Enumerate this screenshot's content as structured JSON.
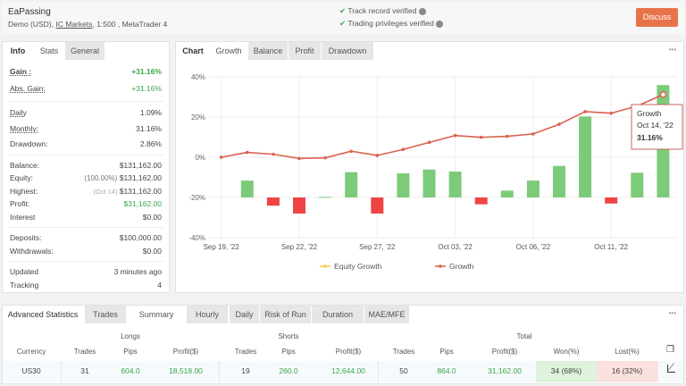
{
  "header": {
    "title": "EaPassing",
    "account": "Demo (USD),",
    "broker": "IC Markets",
    "details": ", 1:500 , MetaTrader 4",
    "verified": [
      "Track record verified",
      "Trading privileges verified"
    ],
    "discuss_label": "Discuss",
    "accent": "#e8734a"
  },
  "info_panel": {
    "tabs": [
      "Info",
      "Stats",
      "General"
    ],
    "gain": {
      "label": "Gain :",
      "value": "+31.16%"
    },
    "abs_gain": {
      "label": "Abs. Gain:",
      "value": "+31.16%"
    },
    "daily": {
      "label": "Daily",
      "value": "1.09%"
    },
    "monthly": {
      "label": "Monthly:",
      "value": "31.16%"
    },
    "drawdown": {
      "label": "Drawdown:",
      "value": "2.86%"
    },
    "balance": {
      "label": "Balance:",
      "value": "$131,162.00"
    },
    "equity": {
      "label": "Equity:",
      "note": "(100.00%)",
      "value": "$131,162.00"
    },
    "highest": {
      "label": "Highest:",
      "note": "(Oct 14)",
      "value": "$131,162.00"
    },
    "profit": {
      "label": "Profit:",
      "value": "$31,162.00"
    },
    "interest": {
      "label": "Interest",
      "value": "$0.00"
    },
    "deposits": {
      "label": "Deposits:",
      "value": "$100,000.00"
    },
    "withdrawals": {
      "label": "Withdrawals:",
      "value": "$0.00"
    },
    "updated": {
      "label": "Updated",
      "value": "3 minutes ago"
    },
    "tracking": {
      "label": "Tracking",
      "value": "4"
    }
  },
  "chart_panel": {
    "tabs": [
      "Chart",
      "Growth",
      "Balance",
      "Profit",
      "Drawdown"
    ],
    "menu": "•••"
  },
  "chart_data": {
    "type": "line+bar",
    "ylim": [
      -40,
      40
    ],
    "yticks": [
      "40%",
      "20%",
      "0%",
      "-20%",
      "-40%"
    ],
    "ytick_values": [
      40,
      20,
      0,
      -20,
      -40
    ],
    "xticks": [
      {
        "index": 0,
        "label": "Sep 19, '22"
      },
      {
        "index": 3,
        "label": "Sep 22, '22"
      },
      {
        "index": 6,
        "label": "Sep 27, '22"
      },
      {
        "index": 9,
        "label": "Oct 03, '22"
      },
      {
        "index": 12,
        "label": "Oct 06, '22"
      },
      {
        "index": 15,
        "label": "Oct 11, '22"
      }
    ],
    "growth": [
      0,
      2.4,
      1.5,
      -0.6,
      -0.3,
      3.0,
      0.9,
      3.9,
      7.4,
      10.8,
      9.9,
      10.4,
      11.6,
      16.4,
      22.7,
      21.9,
      25.5,
      31.16
    ],
    "bar_baseline": -20,
    "bars": [
      null,
      8.4,
      -4.1,
      -8,
      0.3,
      12.6,
      -8,
      12,
      13.9,
      12.9,
      -3.4,
      3.4,
      8.4,
      15.7,
      40.3,
      -3,
      12.3,
      55.9
    ],
    "line_color": "#d9624e",
    "bar_up_color": "#7dcb7a",
    "bar_down_color": "#ef4444",
    "legend": [
      "Equity Growth",
      "Growth"
    ],
    "legend_position": "bottom",
    "tooltip": {
      "series": "Growth",
      "date": "Oct 14, '22",
      "value": "31.16%"
    }
  },
  "advanced": {
    "tabs": [
      "Advanced Statistics",
      "Trades",
      "Summary",
      "Hourly",
      "Daily",
      "Risk of Run",
      "Duration",
      "MAE/MFE"
    ],
    "menu": "•••",
    "groups": [
      "Longs",
      "Shorts",
      "Total"
    ],
    "columns": [
      "Currency",
      "Trades",
      "Pips",
      "Profit($)",
      "Trades",
      "Pips",
      "Profit($)",
      "Trades",
      "Pips",
      "Profit($)",
      "Won(%)",
      "Lost(%)"
    ],
    "row": [
      "US30",
      "31",
      "604.0",
      "18,518.00",
      "19",
      "260.0",
      "12,644.00",
      "50",
      "864.0",
      "31,162.00",
      "34 (68%)",
      "16 (32%)"
    ]
  }
}
